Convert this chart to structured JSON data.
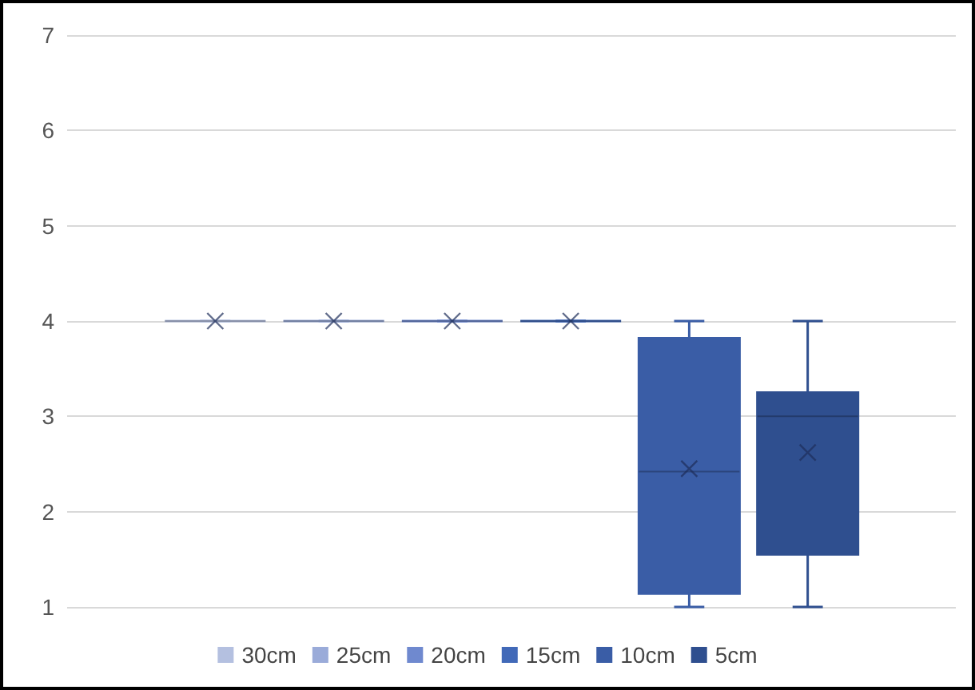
{
  "chart_data": {
    "type": "box",
    "categories": [
      null
    ],
    "series": [
      {
        "name": "30cm",
        "color": "#b4c0e0",
        "boxes": [
          {
            "low": 4,
            "q1": 4,
            "median": 4,
            "q3": 4,
            "high": 4,
            "mean": 4
          }
        ]
      },
      {
        "name": "25cm",
        "color": "#9aabd9",
        "boxes": [
          {
            "low": 4,
            "q1": 4,
            "median": 4,
            "q3": 4,
            "high": 4,
            "mean": 4
          }
        ]
      },
      {
        "name": "20cm",
        "color": "#6f89cf",
        "boxes": [
          {
            "low": 4,
            "q1": 4,
            "median": 4,
            "q3": 4,
            "high": 4,
            "mean": 4
          }
        ]
      },
      {
        "name": "15cm",
        "color": "#4169b8",
        "boxes": [
          {
            "low": 4,
            "q1": 4,
            "median": 4,
            "q3": 4,
            "high": 4,
            "mean": 4
          }
        ]
      },
      {
        "name": "10cm",
        "color": "#3a5da6",
        "boxes": [
          {
            "low": 1,
            "q1": 1.14,
            "median": 2.42,
            "q3": 3.82,
            "high": 4,
            "mean": 2.45
          }
        ]
      },
      {
        "name": "5cm",
        "color": "#2f4f8f",
        "boxes": [
          {
            "low": 1,
            "q1": 1.55,
            "median": 3.0,
            "q3": 3.25,
            "high": 4,
            "mean": 2.62
          }
        ]
      }
    ],
    "ylim": [
      1,
      7
    ],
    "yticks": [
      1,
      2,
      3,
      4,
      5,
      6,
      7
    ],
    "grid": "y",
    "legend": "bottom"
  }
}
